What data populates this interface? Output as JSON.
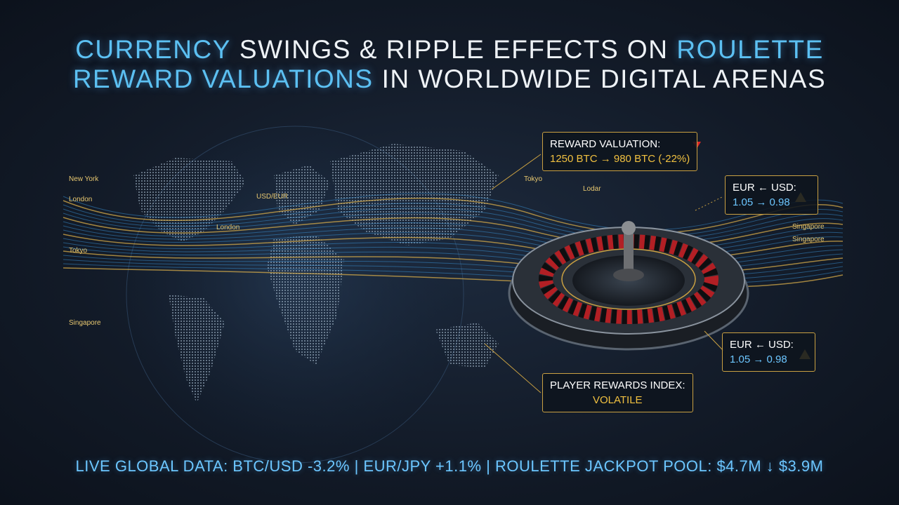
{
  "header": {
    "title_lines": [
      [
        {
          "text": "CURRENCY",
          "highlight": true
        },
        {
          "text": "SWINGS & RIPPLE EFFECTS ON",
          "highlight": false
        },
        {
          "text": "ROULETTE",
          "highlight": true
        }
      ],
      [
        {
          "text": "REWARD VALUATIONS",
          "highlight": true
        },
        {
          "text": "IN WORLDWIDE DIGITAL ARENAS",
          "highlight": false
        }
      ]
    ]
  },
  "map_labels": [
    "New York",
    "London",
    "Tokyo",
    "Singapore",
    "USD/EUR",
    "London",
    "Tokyo",
    "Lodar",
    "Singapore",
    "Singapore"
  ],
  "callouts": [
    {
      "title": "REWARD VALUATION:",
      "detail": "1250 BTC → 980 BTC (-22%)"
    },
    {
      "title": "EUR ← USD:",
      "detail": "1.05 → 0.98"
    },
    {
      "title": "EUR ← USD:",
      "detail": "1.05 → 0.98"
    },
    {
      "title": "PLAYER REWARDS INDEX:",
      "detail": "VOLATILE"
    }
  ],
  "ticker": "LIVE GLOBAL DATA: BTC/USD -3.2% | EUR/JPY +1.1% | ROULETTE JACKPOT POOL: $4.7M ↓ $3.9M"
}
